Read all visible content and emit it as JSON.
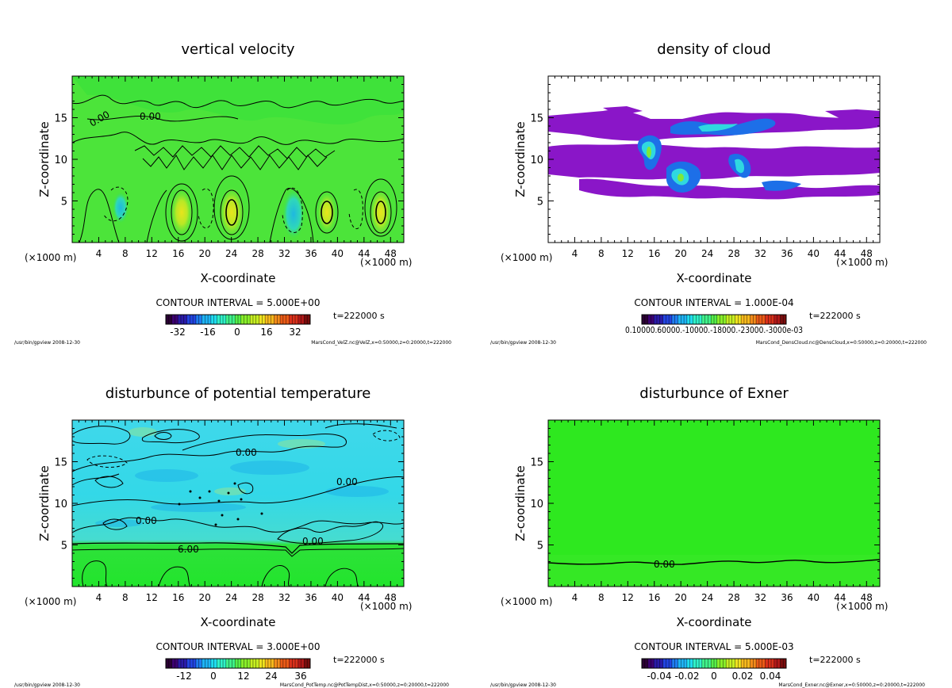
{
  "colors": {
    "velocity_bg": "#3fe23a",
    "exner_bg": "#2ee81f",
    "potential_bg_top": "#35d8e8",
    "potential_bg_bottom": "#22e42c",
    "cloud": "#8a16c8",
    "contour": "#000000",
    "frame": "#000000"
  },
  "colorbars": {
    "rainbow": [
      "#2a0033",
      "#3b0070",
      "#2a1aa8",
      "#2244e0",
      "#1f7cf0",
      "#1eb4f5",
      "#1fdcef",
      "#2ff0c8",
      "#3ff08a",
      "#55ee4a",
      "#88ee2a",
      "#c6ee22",
      "#efe21f",
      "#f6b81c",
      "#f28a1a",
      "#ea5a16",
      "#d9301a",
      "#b01818",
      "#7a0d0d"
    ]
  },
  "chart_data": [
    {
      "type": "heatmap",
      "title": "vertical velocity",
      "xlabel": "X-coordinate",
      "ylabel": "Z-coordinate",
      "x_unit_left": "(×1000 m)",
      "x_unit_right": "(×1000 m)",
      "xlim": [
        0,
        50
      ],
      "ylim": [
        0,
        20
      ],
      "xticks": [
        "4",
        "8",
        "12",
        "16",
        "20",
        "24",
        "28",
        "32",
        "36",
        "40",
        "44",
        "48"
      ],
      "yticks": [
        "5",
        "10",
        "15"
      ],
      "contour_labels": [
        "0.00",
        "0.00"
      ],
      "contour_interval": "CONTOUR INTERVAL = 5.000E+00",
      "time": "t=222000 s",
      "colorbar_ticks": [
        "-32",
        "-16",
        "0",
        "16",
        "32"
      ],
      "footer_left": "/usr/bin/gpview  2008-12-30",
      "footer_right": "MarsCond_VelZ.nc@VelZ,x=0:50000,z=0:20000,t=222000"
    },
    {
      "type": "heatmap",
      "title": "density of cloud",
      "xlabel": "X-coordinate",
      "ylabel": "Z-coordinate",
      "x_unit_left": "(×1000 m)",
      "x_unit_right": "(×1000 m)",
      "xlim": [
        0,
        50
      ],
      "ylim": [
        0,
        20
      ],
      "xticks": [
        "4",
        "8",
        "12",
        "16",
        "20",
        "24",
        "28",
        "32",
        "36",
        "40",
        "44",
        "48"
      ],
      "yticks": [
        "5",
        "10",
        "15"
      ],
      "contour_interval": "CONTOUR INTERVAL = 1.000E-04",
      "time": "t=222000 s",
      "colorbar_ticks": [
        "0.10000E-03",
        "0.60000E-03",
        "0.10000E-02",
        "0.18000E-02",
        "0.23000E-02",
        "0.30000E-02"
      ],
      "colorbar_ticks_text": "0.10000.60000.-10000.-18000.-23000.-3000e-03",
      "footer_left": "/usr/bin/gpview  2008-12-30",
      "footer_right": "MarsCond_DensCloud.nc@DensCloud,x=0:50000,z=0:20000,t=222000"
    },
    {
      "type": "heatmap",
      "title": "disturbunce of potential temperature",
      "xlabel": "X-coordinate",
      "ylabel": "Z-coordinate",
      "x_unit_left": "(×1000 m)",
      "x_unit_right": "(×1000 m)",
      "xlim": [
        0,
        50
      ],
      "ylim": [
        0,
        20
      ],
      "xticks": [
        "4",
        "8",
        "12",
        "16",
        "20",
        "24",
        "28",
        "32",
        "36",
        "40",
        "44",
        "48"
      ],
      "yticks": [
        "5",
        "10",
        "15"
      ],
      "contour_labels": [
        "0.00",
        "0.00",
        "0.00",
        "0.00",
        "6.00"
      ],
      "contour_interval": "CONTOUR INTERVAL = 3.000E+00",
      "time": "t=222000 s",
      "colorbar_ticks": [
        "-12",
        "0",
        "12",
        "24",
        "36"
      ],
      "footer_left": "/usr/bin/gpview  2008-12-30",
      "footer_right": "MarsCond_PotTemp.nc@PotTempDist,x=0:50000,z=0:20000,t=222000"
    },
    {
      "type": "heatmap",
      "title": "disturbunce of Exner",
      "xlabel": "X-coordinate",
      "ylabel": "Z-coordinate",
      "x_unit_left": "(×1000 m)",
      "x_unit_right": "(×1000 m)",
      "xlim": [
        0,
        50
      ],
      "ylim": [
        0,
        20
      ],
      "xticks": [
        "4",
        "8",
        "12",
        "16",
        "20",
        "24",
        "28",
        "32",
        "36",
        "40",
        "44",
        "48"
      ],
      "yticks": [
        "5",
        "10",
        "15"
      ],
      "contour_labels": [
        "0.00"
      ],
      "contour_interval": "CONTOUR INTERVAL = 5.000E-03",
      "time": "t=222000 s",
      "colorbar_ticks": [
        "-0.04",
        "-0.02",
        "0",
        "0.02",
        "0.04"
      ],
      "footer_left": "/usr/bin/gpview  2008-12-30",
      "footer_right": "MarsCond_Exner.nc@Exner,x=0:50000,z=0:20000,t=222000"
    }
  ]
}
